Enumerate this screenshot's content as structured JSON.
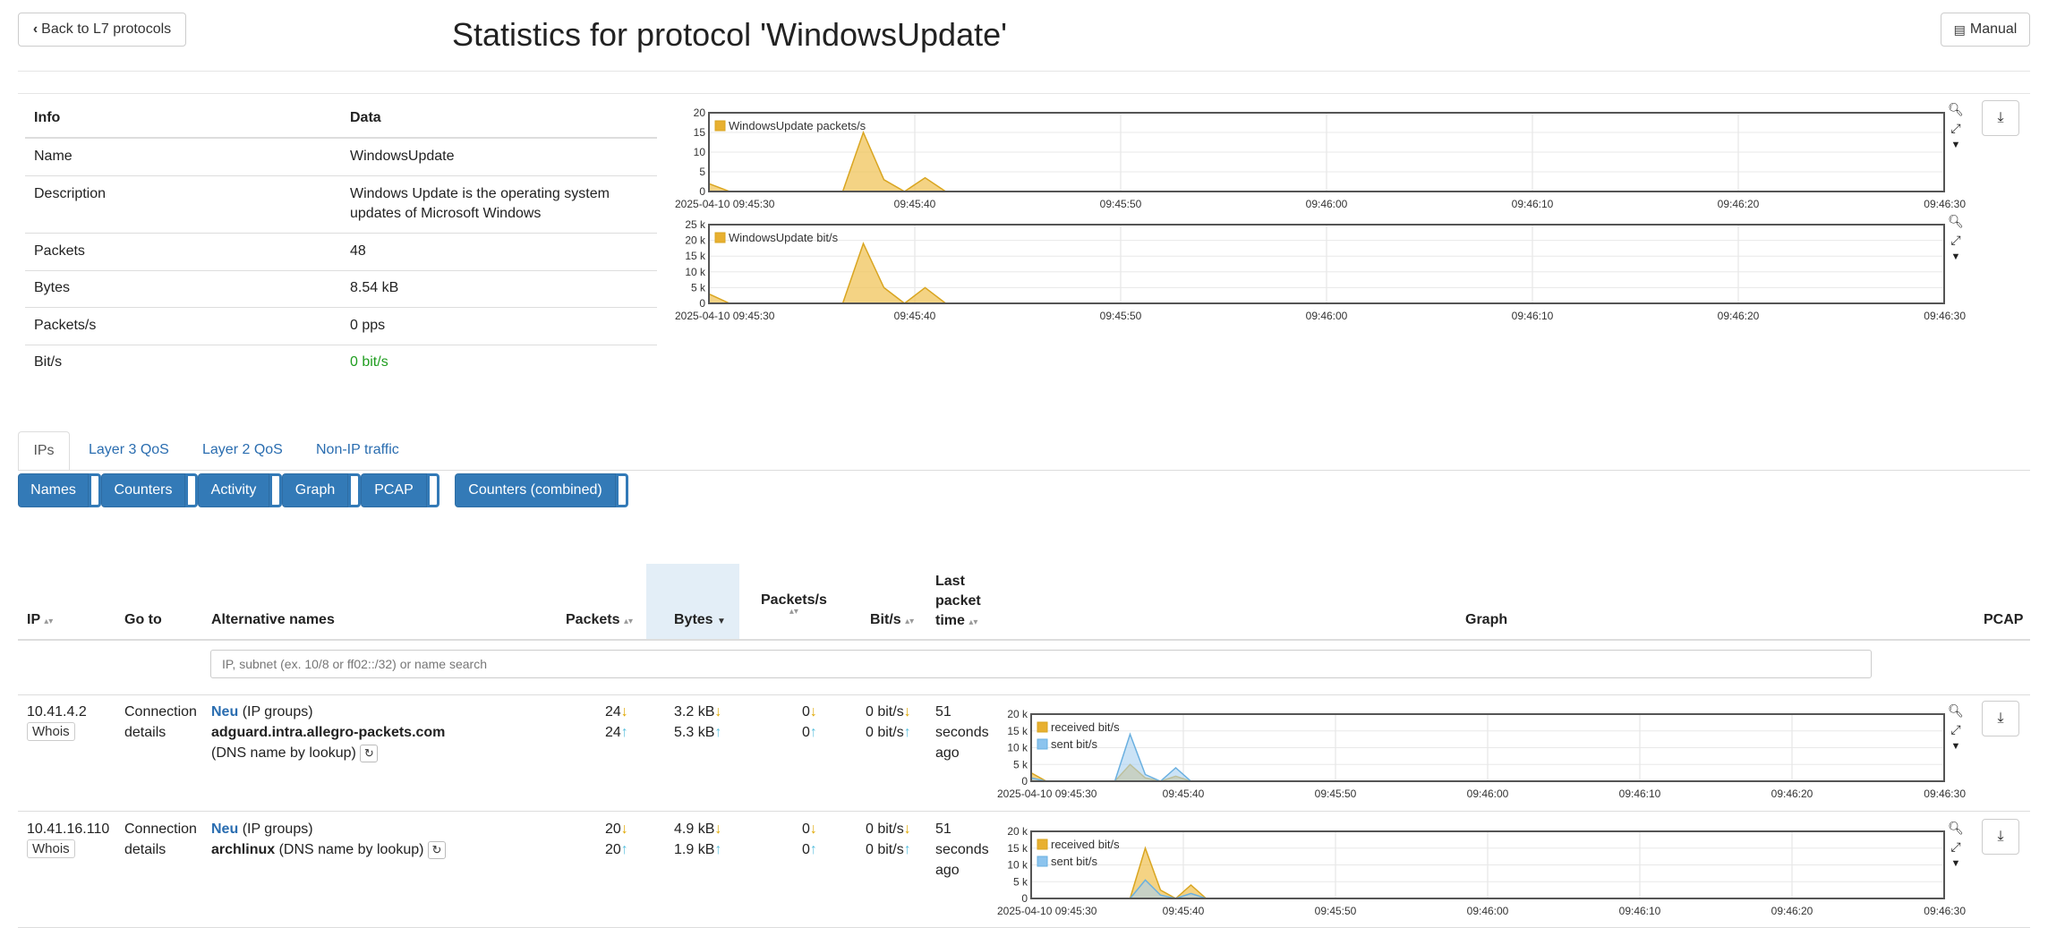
{
  "header": {
    "back_label": "Back to L7 protocols",
    "title": "Statistics for protocol 'WindowsUpdate'",
    "manual_label": "Manual"
  },
  "info_table": {
    "col_info": "Info",
    "col_data": "Data",
    "rows": [
      {
        "label": "Name",
        "value": "WindowsUpdate"
      },
      {
        "label": "Description",
        "value_line1": "Windows Update is the operating system",
        "value_line2": "updates of Microsoft Windows"
      },
      {
        "label": "Packets",
        "value": "48"
      },
      {
        "label": "Bytes",
        "value": "8.54 kB"
      },
      {
        "label": "Packets/s",
        "value": "0 pps"
      },
      {
        "label": "Bit/s",
        "value": "0 bit/s"
      }
    ]
  },
  "tabs": [
    "IPs",
    "Layer 3 QoS",
    "Layer 2 QoS",
    "Non-IP traffic"
  ],
  "buttons": [
    "Names",
    "Counters",
    "Activity",
    "Graph",
    "PCAP",
    "Counters (combined)"
  ],
  "ip_table": {
    "headers": {
      "ip": "IP",
      "goto": "Go to",
      "alt": "Alternative names",
      "packets": "Packets",
      "bytes": "Bytes",
      "pps": "Packets/s",
      "bits": "Bit/s",
      "last_l1": "Last",
      "last_l2": "packet",
      "last_l3": "time",
      "graph": "Graph",
      "pcap": "PCAP"
    },
    "search_placeholder": "IP, subnet (ex. 10/8 or ff02::/32) or name search",
    "rows": [
      {
        "ip": "10.41.4.2",
        "whois": "Whois",
        "goto_l1": "Connection",
        "goto_l2": "details",
        "group_name": "Neu",
        "group_suffix": "(IP groups)",
        "dns_name": "adguard.intra.allegro-packets.com",
        "dns_suffix": "(DNS name by lookup)",
        "packets_rx": "24",
        "packets_tx": "24",
        "bytes_rx": "3.2 kB",
        "bytes_tx": "5.3 kB",
        "pps_rx": "0",
        "pps_tx": "0",
        "bits_rx": "0 bit/s",
        "bits_tx": "0 bit/s",
        "last_l1": "51",
        "last_l2": "seconds",
        "last_l3": "ago"
      },
      {
        "ip": "10.41.16.110",
        "whois": "Whois",
        "goto_l1": "Connection",
        "goto_l2": "details",
        "group_name": "Neu",
        "group_suffix": "(IP groups)",
        "dns_name": "archlinux",
        "dns_suffix": "(DNS name by lookup)",
        "packets_rx": "20",
        "packets_tx": "20",
        "bytes_rx": "4.9 kB",
        "bytes_tx": "1.9 kB",
        "pps_rx": "0",
        "pps_tx": "0",
        "bits_rx": "0 bit/s",
        "bits_tx": "0 bit/s",
        "last_l1": "51",
        "last_l2": "seconds",
        "last_l3": "ago"
      }
    ]
  },
  "colors": {
    "primary": "#337ab7",
    "link": "#2a6db0",
    "received": "#f0c050",
    "sent": "#a8d0f0",
    "green": "#1f9d1f"
  },
  "chart_data": [
    {
      "type": "area",
      "x_ticks": [
        "2025-04-10 09:45:30",
        "09:45:40",
        "09:45:50",
        "09:46:00",
        "09:46:10",
        "09:46:20",
        "09:46:30"
      ],
      "y_ticks": [
        "0",
        "5",
        "10",
        "15",
        "20"
      ],
      "ylim": [
        0,
        20
      ],
      "legend": "top-left",
      "series": [
        {
          "name": "WindowsUpdate packets/s",
          "points": [
            [
              0,
              2
            ],
            [
              1,
              0
            ],
            [
              6.5,
              0
            ],
            [
              7.5,
              15
            ],
            [
              8.5,
              3
            ],
            [
              9.5,
              0
            ],
            [
              10.5,
              3.5
            ],
            [
              11.5,
              0
            ],
            [
              60,
              0
            ]
          ]
        }
      ]
    },
    {
      "type": "area",
      "x_ticks": [
        "2025-04-10 09:45:30",
        "09:45:40",
        "09:45:50",
        "09:46:00",
        "09:46:10",
        "09:46:20",
        "09:46:30"
      ],
      "y_ticks": [
        "0",
        "5 k",
        "10 k",
        "15 k",
        "20 k",
        "25 k"
      ],
      "ylim": [
        0,
        25000
      ],
      "legend": "top-left",
      "series": [
        {
          "name": "WindowsUpdate bit/s",
          "points": [
            [
              0,
              3000
            ],
            [
              1,
              0
            ],
            [
              6.5,
              0
            ],
            [
              7.5,
              19000
            ],
            [
              8.5,
              5000
            ],
            [
              9.5,
              0
            ],
            [
              10.5,
              5000
            ],
            [
              11.5,
              0
            ],
            [
              60,
              0
            ]
          ]
        }
      ]
    },
    {
      "type": "area",
      "x_ticks": [
        "2025-04-10 09:45:30",
        "09:45:40",
        "09:45:50",
        "09:46:00",
        "09:46:10",
        "09:46:20",
        "09:46:30"
      ],
      "y_ticks": [
        "0",
        "5 k",
        "10 k",
        "15 k",
        "20 k"
      ],
      "ylim": [
        0,
        20000
      ],
      "legend": "top-left",
      "series": [
        {
          "name": "received bit/s",
          "points": [
            [
              0,
              2500
            ],
            [
              1,
              0
            ],
            [
              5.5,
              0
            ],
            [
              6.5,
              5000
            ],
            [
              7.5,
              1000
            ],
            [
              8.5,
              0
            ],
            [
              9.5,
              1500
            ],
            [
              10.5,
              0
            ],
            [
              60,
              0
            ]
          ]
        },
        {
          "name": "sent bit/s",
          "points": [
            [
              0,
              1000
            ],
            [
              1,
              0
            ],
            [
              5.5,
              0
            ],
            [
              6.5,
              14000
            ],
            [
              7.5,
              2000
            ],
            [
              8.5,
              0
            ],
            [
              9.5,
              4000
            ],
            [
              10.5,
              0
            ],
            [
              60,
              0
            ]
          ]
        }
      ]
    },
    {
      "type": "area",
      "x_ticks": [
        "2025-04-10 09:45:30",
        "09:45:40",
        "09:45:50",
        "09:46:00",
        "09:46:10",
        "09:46:20",
        "09:46:30"
      ],
      "y_ticks": [
        "0",
        "5 k",
        "10 k",
        "15 k",
        "20 k"
      ],
      "ylim": [
        0,
        20000
      ],
      "legend": "top-left",
      "series": [
        {
          "name": "received bit/s",
          "points": [
            [
              0,
              0
            ],
            [
              6.5,
              0
            ],
            [
              7.5,
              15000
            ],
            [
              8.5,
              2500
            ],
            [
              9.5,
              0
            ],
            [
              10.5,
              4000
            ],
            [
              11.5,
              0
            ],
            [
              60,
              0
            ]
          ]
        },
        {
          "name": "sent bit/s",
          "points": [
            [
              0,
              0
            ],
            [
              6.5,
              0
            ],
            [
              7.5,
              5500
            ],
            [
              8.5,
              1000
            ],
            [
              9.5,
              0
            ],
            [
              10.5,
              1500
            ],
            [
              11.5,
              0
            ],
            [
              60,
              0
            ]
          ]
        }
      ]
    }
  ]
}
